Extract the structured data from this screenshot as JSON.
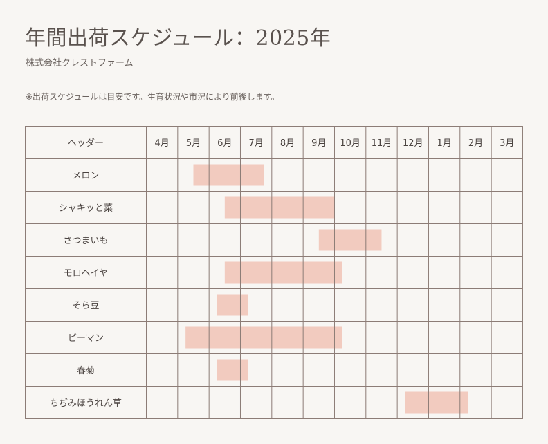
{
  "header": {
    "title": "年間出荷スケジュール：2025年",
    "company": "株式会社クレストファーム",
    "note": "※出荷スケジュールは目安です。生育状況や市況により前後します。"
  },
  "colors": {
    "bar": "#f2cbbf",
    "grid": "#8c7c76",
    "text": "#4a4340",
    "background": "#f8f6f3"
  },
  "chart_data": {
    "type": "gantt",
    "header_label": "ヘッダー",
    "months": [
      "4月",
      "5月",
      "6月",
      "7月",
      "8月",
      "9月",
      "10月",
      "11月",
      "12月",
      "1月",
      "2月",
      "3月"
    ],
    "tasks": [
      {
        "name": "メロン",
        "start": 1.5,
        "end": 3.75
      },
      {
        "name": "シャキッと菜",
        "start": 2.5,
        "end": 6.0
      },
      {
        "name": "さつまいも",
        "start": 5.5,
        "end": 7.5
      },
      {
        "name": "モロヘイヤ",
        "start": 2.5,
        "end": 6.25
      },
      {
        "name": "そら豆",
        "start": 2.25,
        "end": 3.25
      },
      {
        "name": "ピーマン",
        "start": 1.25,
        "end": 6.25
      },
      {
        "name": "春菊",
        "start": 2.25,
        "end": 3.25
      },
      {
        "name": "ちぢみほうれん草",
        "start": 8.25,
        "end": 10.25
      }
    ]
  }
}
